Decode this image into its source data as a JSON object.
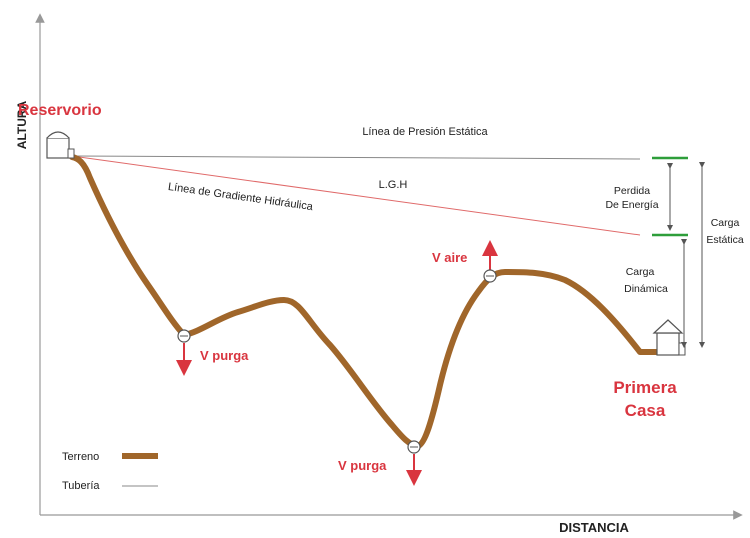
{
  "axes": {
    "y_label": "ALTURA",
    "x_label": "DISTANCIA"
  },
  "labels": {
    "reservoir": "Reservorio",
    "static_pressure_line": "Línea de Presión Estática",
    "hydraulic_gradient_line": "Línea de Gradiente Hidráulica",
    "lgh": "L.G.H",
    "energy_loss_line1": "Perdida",
    "energy_loss_line2": "De Energía",
    "static_head_line1": "Carga",
    "static_head_line2": "Estática",
    "dynamic_head_line1": "Carga",
    "dynamic_head_line2": "Dinámica",
    "air_valve": "V aire",
    "purge_valve_1": "V purga",
    "purge_valve_2": "V purga",
    "first_house_line1": "Primera",
    "first_house_line2": "Casa"
  },
  "legend": {
    "terrain": "Terreno",
    "pipe": "Tubería"
  },
  "colors": {
    "terrain": "#a0662a",
    "accent_red": "#d9353f",
    "marker_green": "#2e9e3a",
    "axis": "#999999",
    "text": "#222222"
  }
}
